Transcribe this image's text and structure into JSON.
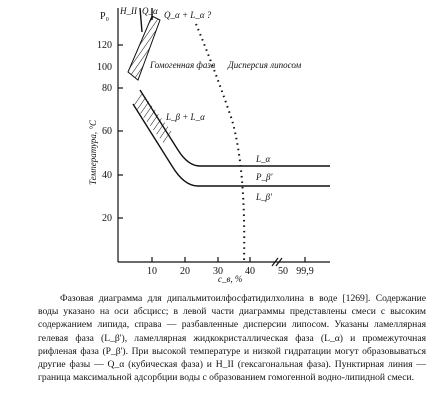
{
  "figure": {
    "y_axis_label": "Температура, °C",
    "x_axis_label": "c_в, %",
    "y_top_label": "P₀",
    "y_ticks": [
      "120",
      "100",
      "80",
      "60",
      "40",
      "20"
    ],
    "x_ticks": [
      "10",
      "20",
      "30",
      "40",
      "50",
      "99,9"
    ],
    "labels": {
      "h2": "H_II",
      "qa": "Q_α",
      "qa_la": "Q_α + L_α ?",
      "homogeneous": "Гомогенная фаза",
      "dispersion": "Дисперсия липосом",
      "lb_la": "L_β + L_α",
      "la": "L_α",
      "pb": "P_β'",
      "lb": "L_β'"
    }
  },
  "caption": "Фазовая диаграмма для дипальмитоилфосфатидилхолина в воде [1269]. Содержание воды указано на оси абсцисс; в левой части диаграммы представлены смеси с высоким содержанием липида, справа — разбавленные дисперсии липосом. Указаны ламеллярная гелевая фаза (L_β'), ламеллярная жидкокристаллическая фаза (L_α) и промежуточная рифленая фаза (P_β'). При высокой температуре и низкой гидратации могут образовываться другие фазы — Q_α (кубическая фаза) и H_II (гексагональная фаза). Пунктирная линия — граница максимальной адсорбции воды с образованием гомогенной водно-липидной смеси."
}
